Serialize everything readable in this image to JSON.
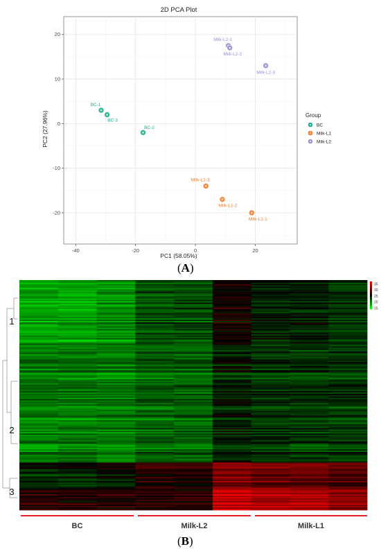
{
  "panel_a_label": "A",
  "panel_b_label": "B",
  "chart_data": [
    {
      "type": "scatter",
      "title": "2D PCA Plot",
      "xlabel": "PC1 (58.05%)",
      "ylabel": "PC2 (27.96%)",
      "xlim": [
        -44,
        34
      ],
      "ylim": [
        -27,
        24
      ],
      "xticks": [
        -40,
        -20,
        0,
        20
      ],
      "yticks": [
        -20,
        -10,
        0,
        10,
        20
      ],
      "grid": true,
      "legend_title": "Group",
      "legend_position": "right",
      "series": [
        {
          "name": "BC",
          "color": "#1aae8c",
          "points": [
            {
              "label": "BC-1",
              "x": -31.5,
              "y": 3.0
            },
            {
              "label": "BC-3",
              "x": -29.5,
              "y": 2.0
            },
            {
              "label": "BC-2",
              "x": -17.5,
              "y": -2.0
            }
          ]
        },
        {
          "name": "Milk-L1",
          "color": "#f07c2a",
          "points": [
            {
              "label": "Milk-L1-3",
              "x": 3.5,
              "y": -14.0
            },
            {
              "label": "Milk-L1-2",
              "x": 9.0,
              "y": -17.0
            },
            {
              "label": "Milk-L1-1",
              "x": 18.8,
              "y": -20.0
            }
          ]
        },
        {
          "name": "Milk-L2",
          "color": "#9a8fd0",
          "points": [
            {
              "label": "Milk-L2-1",
              "x": 11.0,
              "y": 17.5
            },
            {
              "label": "Milk-L2-2",
              "x": 11.5,
              "y": 17.0
            },
            {
              "label": "Milk-L2-3",
              "x": 23.5,
              "y": 13.0
            }
          ]
        }
      ]
    },
    {
      "type": "heatmap",
      "columns": [
        "BC",
        "BC",
        "BC",
        "Milk-L2",
        "Milk-L2",
        "Milk-L2",
        "Milk-L1",
        "Milk-L1",
        "Milk-L1"
      ],
      "group_labels": [
        "BC",
        "Milk-L2",
        "Milk-L1"
      ],
      "cluster_labels": [
        "1",
        "2",
        "3"
      ],
      "colorbar_ticks": [
        35,
        30,
        25,
        20,
        15
      ],
      "colorbar_range": [
        14,
        37
      ],
      "color_low": "#00ff00",
      "color_mid": "#000000",
      "color_high": "#ff0000",
      "row_blocks": [
        {
          "rows": 48,
          "values": [
            18,
            19,
            22,
            26,
            24,
            23
          ]
        },
        {
          "rows": 90,
          "values": [
            20,
            20,
            21,
            24,
            23,
            23
          ]
        },
        {
          "rows": 20,
          "values": [
            24,
            25,
            27,
            31,
            30,
            29
          ]
        },
        {
          "rows": 16,
          "values": [
            27,
            27,
            27,
            34,
            33,
            32
          ]
        }
      ]
    }
  ]
}
